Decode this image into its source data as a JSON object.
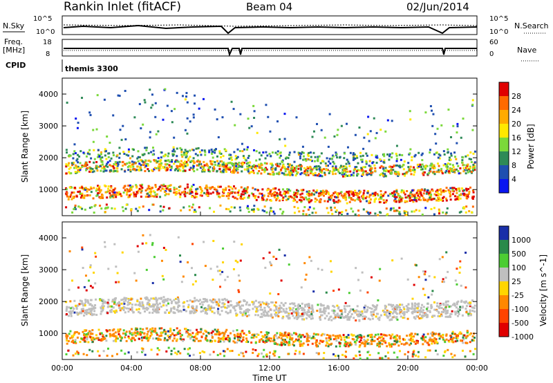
{
  "header": {
    "station": "Rankin Inlet (fitACF)",
    "beam": "Beam 04",
    "date": "02/Jun/2014"
  },
  "aux_panels": {
    "nsky_label": "N.Sky",
    "nsky_ticks": [
      "10^5",
      "10^0"
    ],
    "nsearch_label": "N.Search",
    "nsearch_ticks": [
      "10^5",
      "10^0"
    ],
    "freq_label": "Freq.",
    "freq_unit": "[MHz]",
    "freq_ticks": [
      "18",
      "8"
    ],
    "nave_label": "Nave",
    "nave_ticks": [
      "60",
      "0"
    ],
    "cpid_label": "CPID",
    "cpid_value": "themis 3300"
  },
  "chart_data": [
    {
      "type": "heatmap",
      "ylabel": "Slant Range [km]",
      "yticks": [
        1000,
        2000,
        3000,
        4000
      ],
      "ylim": [
        180,
        4500
      ],
      "colorbar_label": "Power [dB]",
      "colorbar_ticks": [
        "28",
        "24",
        "20",
        "16",
        "12",
        "8",
        "4"
      ],
      "colorbar_colors": [
        "#e00000",
        "#ff6a00",
        "#ffab00",
        "#ffe800",
        "#7bd93a",
        "#2e8a57",
        "#1f4fb0",
        "#0a16f0"
      ]
    },
    {
      "type": "heatmap",
      "ylabel": "Slant Range [km]",
      "yticks": [
        1000,
        2000,
        3000,
        4000
      ],
      "ylim": [
        180,
        4500
      ],
      "colorbar_label": "Velocity [m s^-1]",
      "colorbar_ticks": [
        "1000",
        "500",
        "100",
        "25",
        "-25",
        "-100",
        "-500",
        "-1000"
      ],
      "colorbar_colors": [
        "#1a2fa8",
        "#2a8a4a",
        "#4ccd33",
        "#bfbfbf",
        "#ffd500",
        "#ff8800",
        "#ff4400",
        "#e00000"
      ]
    }
  ],
  "xaxis": {
    "ticks": [
      "00:00",
      "04:00",
      "08:00",
      "12:00",
      "16:00",
      "20:00",
      "00:00"
    ],
    "label": "Time UT"
  }
}
